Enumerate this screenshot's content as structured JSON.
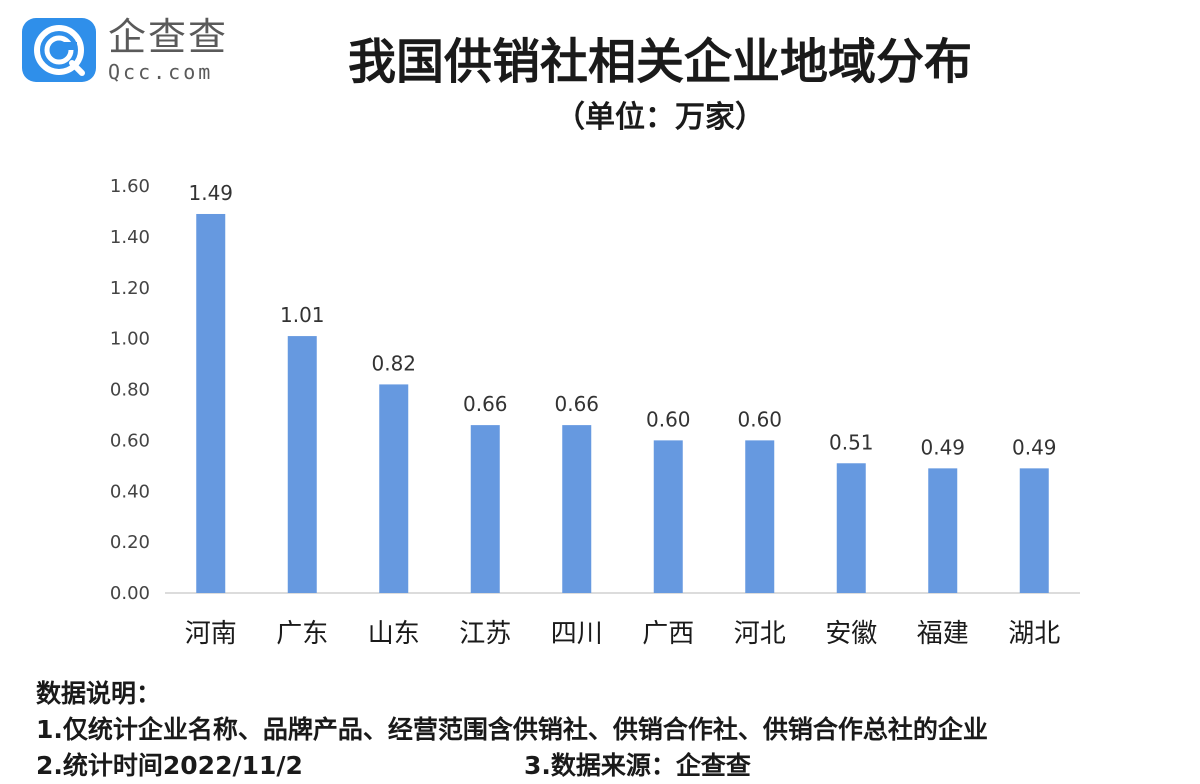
{
  "logo": {
    "name_cn": "企查查",
    "domain": "Qcc.com"
  },
  "chart_data": {
    "type": "bar",
    "title": "我国供销社相关企业地域分布",
    "subtitle": "（单位：万家）",
    "categories": [
      "河南",
      "广东",
      "山东",
      "江苏",
      "四川",
      "广西",
      "河北",
      "安徽",
      "福建",
      "湖北"
    ],
    "values": [
      1.49,
      1.01,
      0.82,
      0.66,
      0.66,
      0.6,
      0.6,
      0.51,
      0.49,
      0.49
    ],
    "value_labels": [
      "1.49",
      "1.01",
      "0.82",
      "0.66",
      "0.66",
      "0.60",
      "0.60",
      "0.51",
      "0.49",
      "0.49"
    ],
    "y_ticks": [
      "0.00",
      "0.20",
      "0.40",
      "0.60",
      "0.80",
      "1.00",
      "1.20",
      "1.40",
      "1.60"
    ],
    "ylim": [
      0,
      1.6
    ],
    "bar_color": "#6699e0",
    "grid": false,
    "xlabel": "",
    "ylabel": ""
  },
  "notes": {
    "heading": "数据说明：",
    "line1": "1.仅统计企业名称、品牌产品、经营范围含供销社、供销合作社、供销合作总社的企业",
    "line2": "2.统计时间2022/11/2",
    "line3": "3.数据来源：企查查"
  }
}
